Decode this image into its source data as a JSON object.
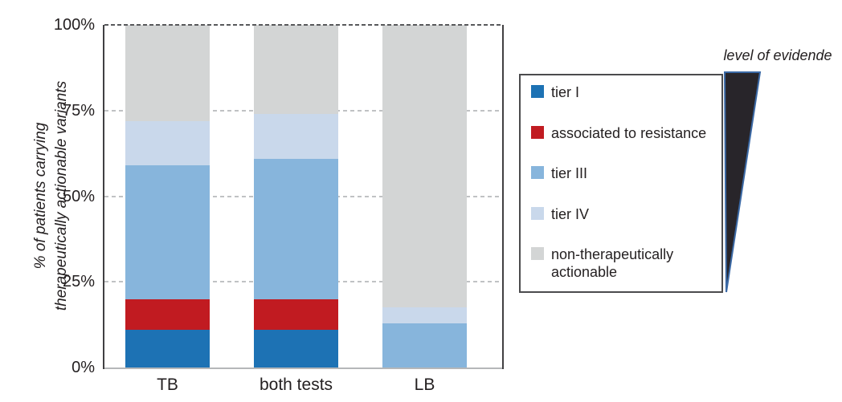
{
  "chart_data": {
    "type": "bar",
    "stacked": true,
    "categories": [
      "TB",
      "both tests",
      "LB"
    ],
    "series": [
      {
        "name": "tier I",
        "color": "#1d72b4",
        "values": [
          11,
          11,
          0
        ]
      },
      {
        "name": "associated to resistance",
        "color": "#c11b21",
        "values": [
          9,
          9,
          0
        ]
      },
      {
        "name": "tier III",
        "color": "#87b5dc",
        "values": [
          39,
          41,
          13
        ]
      },
      {
        "name": "tier IV",
        "color": "#c9d8eb",
        "values": [
          13,
          13,
          4.5
        ]
      },
      {
        "name": "non-therapeutically actionable",
        "color": "#d3d5d5",
        "values": [
          28,
          26,
          82.5
        ]
      }
    ],
    "ylabel_lines": [
      "% of patients carrying",
      "therapeutically actionable variants"
    ],
    "ylim": [
      0,
      100
    ],
    "yticks": [
      {
        "value": 0,
        "label": "0%"
      },
      {
        "value": 25,
        "label": "25%"
      },
      {
        "value": 50,
        "label": "50%"
      },
      {
        "value": 75,
        "label": "75%"
      },
      {
        "value": 100,
        "label": "100%"
      }
    ],
    "grid": "horizontal dashed at 25/50/75 behind bars; dark dashed line at 100",
    "legend_position": "right of plot"
  },
  "legend": {
    "items": [
      {
        "label": "tier I",
        "color": "#1d72b4"
      },
      {
        "label": "associated to resistance",
        "color": "#c11b21"
      },
      {
        "label": "tier III",
        "color": "#87b5dc"
      },
      {
        "label": "tier IV",
        "color": "#c9d8eb"
      },
      {
        "label": "non-therapeutically actionable",
        "color": "#d3d5d5"
      }
    ]
  },
  "evidence_annotation": {
    "label": "level of evidende",
    "wedge_fill": "#28252a",
    "wedge_stroke": "#3b69a5",
    "direction": "wide at top, narrowing downward"
  },
  "colors": {
    "text": "#231f20",
    "frame": "#414042",
    "axis_baseline": "#b5b7b9",
    "gridline_light": "#c0c2c4",
    "gridline_dark": "#58595b",
    "background": "#ffffff"
  }
}
